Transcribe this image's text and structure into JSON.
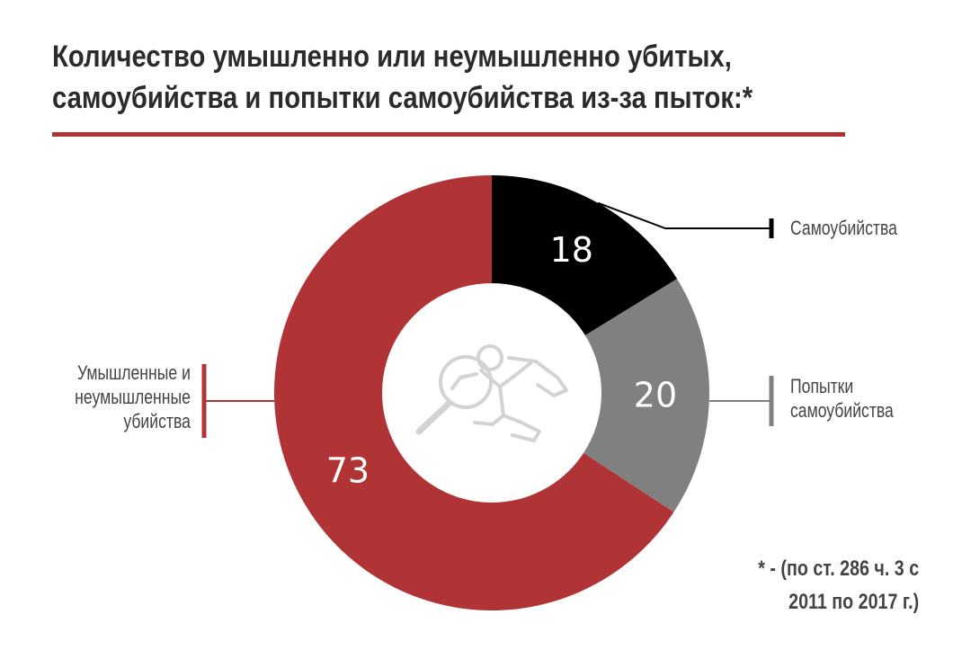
{
  "title_lines": [
    "Количество умышленно или неумышленно убитых,",
    "самоубийства и попытки самоубийства из-за пыток:*"
  ],
  "footnote_lines": [
    "* - (по ст. 286 ч. 3 с",
    "2011 по 2017 г.)"
  ],
  "chart_data": {
    "type": "pie",
    "style": "donut",
    "title": "Количество умышленно или неумышленно убитых, самоубийства и попытки самоубийства из-за пыток:*",
    "slices": [
      {
        "label": "Самоубийства",
        "value": 18,
        "color": "#000000"
      },
      {
        "label": "Попытки самоубийства",
        "value": 20,
        "color": "#808080"
      },
      {
        "label": "Умышленные и неумышленные убийства",
        "value": 73,
        "color": "#b03436"
      }
    ],
    "legend_lines": {
      "samo": [
        "Самоубийства"
      ],
      "pop": [
        "Попытки",
        "самоубийства"
      ],
      "umysh": [
        "Умышленные и",
        "неумышленные",
        "убийства"
      ]
    },
    "center_icon": "crime-scene-magnifier-icon",
    "accent_color": "#b03436"
  }
}
